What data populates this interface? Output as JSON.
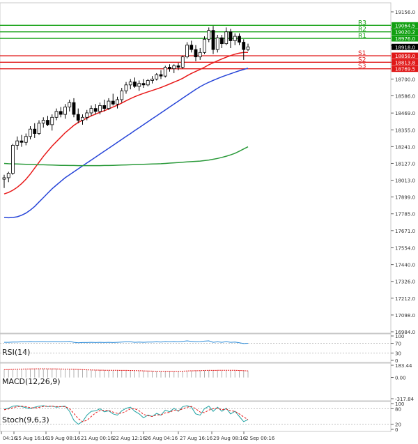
{
  "chart_data": {
    "type": "candlestick",
    "price_axis": {
      "ylim": [
        16984.0,
        19190.0
      ],
      "ticks": [
        19156.0,
        19042.0,
        18928.0,
        18814.0,
        18700.0,
        18586.0,
        18469.0,
        18355.0,
        18241.0,
        18127.0,
        18013.0,
        17899.0,
        17785.0,
        17671.0,
        17554.0,
        17440.0,
        17326.0,
        17212.0,
        17098.0,
        16984.0
      ],
      "tick_labels": [
        "19156.0",
        "19042.0",
        "18928.0",
        "18814.0",
        "18700.0",
        "18586.0",
        "18469.0",
        "18355.0",
        "18241.0",
        "18127.0",
        "18013.0",
        "17899.0",
        "17785.0",
        "17671.0",
        "17554.0",
        "17440.0",
        "17326.0",
        "17212.0",
        "17098.0",
        "16984.0"
      ]
    },
    "current_price": {
      "value": 18918.0,
      "label": "18918.0"
    },
    "levels": [
      {
        "name": "R3",
        "value": 19064.5,
        "label": "19064.5",
        "color": "#11a011"
      },
      {
        "name": "R2",
        "value": 19020.2,
        "label": "19020.2",
        "color": "#11a011"
      },
      {
        "name": "R1",
        "value": 18976.0,
        "label": "18976.0",
        "color": "#11a011"
      },
      {
        "name": "S1",
        "value": 18858.0,
        "label": "18858.0",
        "color": "#e01818"
      },
      {
        "name": "S2",
        "value": 18813.8,
        "label": "18813.8",
        "color": "#e01818"
      },
      {
        "name": "S3",
        "value": 18769.5,
        "label": "18769.5",
        "color": "#e01818"
      }
    ],
    "x_labels": [
      "04:16",
      "15 Aug 16:16",
      "19 Aug 08:16",
      "21 Aug 00:16",
      "22 Aug 12:16",
      "26 Aug 04:16",
      "27 Aug 16:16",
      "29 Aug 08:16",
      "2 Sep 00:16"
    ],
    "candles": [
      {
        "o": 18020,
        "h": 18050,
        "l": 17960,
        "c": 18030
      },
      {
        "o": 18030,
        "h": 18070,
        "l": 18000,
        "c": 18060
      },
      {
        "o": 18060,
        "h": 18260,
        "l": 18050,
        "c": 18250
      },
      {
        "o": 18250,
        "h": 18310,
        "l": 18220,
        "c": 18280
      },
      {
        "o": 18280,
        "h": 18320,
        "l": 18240,
        "c": 18270
      },
      {
        "o": 18270,
        "h": 18330,
        "l": 18250,
        "c": 18310
      },
      {
        "o": 18310,
        "h": 18380,
        "l": 18290,
        "c": 18360
      },
      {
        "o": 18360,
        "h": 18400,
        "l": 18300,
        "c": 18330
      },
      {
        "o": 18330,
        "h": 18420,
        "l": 18320,
        "c": 18400
      },
      {
        "o": 18400,
        "h": 18440,
        "l": 18370,
        "c": 18420
      },
      {
        "o": 18420,
        "h": 18450,
        "l": 18380,
        "c": 18390
      },
      {
        "o": 18390,
        "h": 18460,
        "l": 18350,
        "c": 18440
      },
      {
        "o": 18440,
        "h": 18500,
        "l": 18420,
        "c": 18480
      },
      {
        "o": 18480,
        "h": 18510,
        "l": 18440,
        "c": 18460
      },
      {
        "o": 18460,
        "h": 18530,
        "l": 18430,
        "c": 18510
      },
      {
        "o": 18510,
        "h": 18560,
        "l": 18480,
        "c": 18540
      },
      {
        "o": 18540,
        "h": 18570,
        "l": 18440,
        "c": 18460
      },
      {
        "o": 18460,
        "h": 18500,
        "l": 18400,
        "c": 18420
      },
      {
        "o": 18420,
        "h": 18460,
        "l": 18390,
        "c": 18440
      },
      {
        "o": 18440,
        "h": 18490,
        "l": 18420,
        "c": 18470
      },
      {
        "o": 18470,
        "h": 18520,
        "l": 18450,
        "c": 18500
      },
      {
        "o": 18500,
        "h": 18530,
        "l": 18460,
        "c": 18480
      },
      {
        "o": 18480,
        "h": 18540,
        "l": 18460,
        "c": 18520
      },
      {
        "o": 18520,
        "h": 18560,
        "l": 18480,
        "c": 18500
      },
      {
        "o": 18500,
        "h": 18570,
        "l": 18490,
        "c": 18550
      },
      {
        "o": 18550,
        "h": 18600,
        "l": 18520,
        "c": 18530
      },
      {
        "o": 18530,
        "h": 18580,
        "l": 18500,
        "c": 18560
      },
      {
        "o": 18560,
        "h": 18640,
        "l": 18540,
        "c": 18620
      },
      {
        "o": 18620,
        "h": 18680,
        "l": 18600,
        "c": 18660
      },
      {
        "o": 18660,
        "h": 18700,
        "l": 18630,
        "c": 18680
      },
      {
        "o": 18680,
        "h": 18710,
        "l": 18640,
        "c": 18650
      },
      {
        "o": 18650,
        "h": 18690,
        "l": 18620,
        "c": 18670
      },
      {
        "o": 18670,
        "h": 18700,
        "l": 18640,
        "c": 18660
      },
      {
        "o": 18660,
        "h": 18700,
        "l": 18650,
        "c": 18690
      },
      {
        "o": 18690,
        "h": 18720,
        "l": 18670,
        "c": 18700
      },
      {
        "o": 18700,
        "h": 18740,
        "l": 18690,
        "c": 18730
      },
      {
        "o": 18730,
        "h": 18760,
        "l": 18700,
        "c": 18720
      },
      {
        "o": 18720,
        "h": 18790,
        "l": 18710,
        "c": 18780
      },
      {
        "o": 18780,
        "h": 18800,
        "l": 18750,
        "c": 18770
      },
      {
        "o": 18770,
        "h": 18800,
        "l": 18740,
        "c": 18790
      },
      {
        "o": 18790,
        "h": 18810,
        "l": 18760,
        "c": 18780
      },
      {
        "o": 18780,
        "h": 18860,
        "l": 18770,
        "c": 18850
      },
      {
        "o": 18850,
        "h": 18950,
        "l": 18840,
        "c": 18930
      },
      {
        "o": 18930,
        "h": 18960,
        "l": 18880,
        "c": 18900
      },
      {
        "o": 18900,
        "h": 18930,
        "l": 18820,
        "c": 18850
      },
      {
        "o": 18850,
        "h": 18910,
        "l": 18830,
        "c": 18880
      },
      {
        "o": 18880,
        "h": 18990,
        "l": 18870,
        "c": 18970
      },
      {
        "o": 18970,
        "h": 19050,
        "l": 18950,
        "c": 19030
      },
      {
        "o": 19030,
        "h": 19060,
        "l": 18870,
        "c": 18900
      },
      {
        "o": 18900,
        "h": 19000,
        "l": 18880,
        "c": 18980
      },
      {
        "o": 18980,
        "h": 19000,
        "l": 18910,
        "c": 18940
      },
      {
        "o": 18940,
        "h": 19050,
        "l": 18930,
        "c": 19020
      },
      {
        "o": 19020,
        "h": 19040,
        "l": 18910,
        "c": 18960
      },
      {
        "o": 18960,
        "h": 19010,
        "l": 18930,
        "c": 18990
      },
      {
        "o": 18990,
        "h": 19010,
        "l": 18930,
        "c": 18950
      },
      {
        "o": 18950,
        "h": 18970,
        "l": 18830,
        "c": 18900
      },
      {
        "o": 18900,
        "h": 18940,
        "l": 18890,
        "c": 18918
      }
    ],
    "moving_averages": [
      {
        "color": "#e81818",
        "values": [
          17920,
          17930,
          17945,
          17965,
          17990,
          18020,
          18055,
          18095,
          18135,
          18175,
          18210,
          18245,
          18275,
          18305,
          18335,
          18360,
          18385,
          18405,
          18420,
          18435,
          18450,
          18462,
          18474,
          18485,
          18497,
          18510,
          18522,
          18537,
          18552,
          18567,
          18580,
          18592,
          18603,
          18613,
          18622,
          18632,
          18642,
          18654,
          18666,
          18679,
          18691,
          18705,
          18722,
          18738,
          18752,
          18765,
          18780,
          18797,
          18810,
          18824,
          18836,
          18848,
          18859,
          18869,
          18876,
          18880,
          18880
        ]
      },
      {
        "color": "#2745d8",
        "values": [
          17760,
          17758,
          17760,
          17765,
          17775,
          17790,
          17810,
          17835,
          17865,
          17895,
          17925,
          17955,
          17980,
          18005,
          18030,
          18050,
          18070,
          18090,
          18110,
          18130,
          18150,
          18170,
          18190,
          18210,
          18230,
          18250,
          18270,
          18290,
          18310,
          18330,
          18350,
          18370,
          18390,
          18410,
          18430,
          18450,
          18470,
          18490,
          18510,
          18530,
          18550,
          18570,
          18590,
          18610,
          18630,
          18648,
          18664,
          18678,
          18691,
          18703,
          18715,
          18726,
          18736,
          18746,
          18756,
          18765,
          18773
        ]
      },
      {
        "color": "#2a9a3a",
        "values": [
          18127,
          18125,
          18124,
          18123,
          18122,
          18121,
          18120,
          18119,
          18118,
          18118,
          18117,
          18116,
          18115,
          18114,
          18114,
          18113,
          18113,
          18112,
          18112,
          18112,
          18112,
          18112,
          18112,
          18113,
          18113,
          18114,
          18115,
          18116,
          18117,
          18118,
          18119,
          18120,
          18121,
          18122,
          18123,
          18124,
          18125,
          18127,
          18129,
          18131,
          18133,
          18135,
          18137,
          18139,
          18141,
          18143,
          18146,
          18150,
          18155,
          18161,
          18168,
          18176,
          18185,
          18196,
          18210,
          18225,
          18240
        ]
      }
    ],
    "indicators": [
      {
        "name": "RSI(14)",
        "label": "RSI(14)",
        "ticks": [
          "100",
          "70",
          "30",
          "0"
        ],
        "values": [
          74,
          74,
          75,
          75,
          76,
          76,
          77,
          76,
          77,
          77,
          76,
          77,
          77,
          76,
          77,
          78,
          74,
          72,
          73,
          73,
          74,
          73,
          74,
          73,
          74,
          73,
          74,
          75,
          76,
          76,
          74,
          75,
          74,
          75,
          75,
          76,
          75,
          77,
          76,
          77,
          76,
          78,
          80,
          78,
          76,
          77,
          79,
          80,
          74,
          76,
          74,
          77,
          74,
          75,
          72,
          69,
          70
        ]
      },
      {
        "name": "MACD(12,26,9)",
        "label": "MACD(12,26,9)",
        "ticks": [
          "183.44",
          "0.00",
          "-317.84"
        ],
        "values": [
          120,
          122,
          125,
          128,
          130,
          131,
          132,
          133,
          134,
          134,
          133,
          133,
          132,
          131,
          130,
          129,
          127,
          124,
          121,
          118,
          116,
          114,
          113,
          112,
          111,
          110,
          110,
          109,
          109,
          108,
          106,
          104,
          102,
          100,
          99,
          98,
          97,
          96,
          96,
          96,
          97,
          98,
          101,
          103,
          104,
          105,
          108,
          110,
          109,
          110,
          110,
          111,
          110,
          110,
          108,
          105,
          102
        ]
      },
      {
        "name": "Stoch(9,6,3)",
        "label": "Stoch(9,6,3)",
        "ticks": [
          "100",
          "80",
          "20",
          "0"
        ],
        "main": [
          78,
          82,
          90,
          92,
          88,
          84,
          80,
          86,
          90,
          92,
          88,
          90,
          86,
          88,
          90,
          70,
          35,
          20,
          30,
          55,
          70,
          72,
          80,
          68,
          72,
          60,
          55,
          72,
          82,
          86,
          70,
          60,
          45,
          55,
          50,
          62,
          55,
          75,
          68,
          82,
          70,
          88,
          92,
          86,
          60,
          55,
          80,
          90,
          70,
          86,
          70,
          82,
          60,
          70,
          50,
          30,
          38
        ],
        "signal": [
          76,
          79,
          84,
          88,
          90,
          88,
          84,
          83,
          85,
          89,
          90,
          90,
          88,
          88,
          88,
          80,
          62,
          42,
          30,
          35,
          50,
          64,
          73,
          74,
          73,
          67,
          62,
          63,
          70,
          80,
          80,
          72,
          58,
          53,
          50,
          56,
          56,
          64,
          66,
          75,
          72,
          80,
          86,
          89,
          80,
          67,
          65,
          75,
          80,
          82,
          76,
          79,
          72,
          70,
          60,
          48,
          38
        ]
      }
    ]
  }
}
